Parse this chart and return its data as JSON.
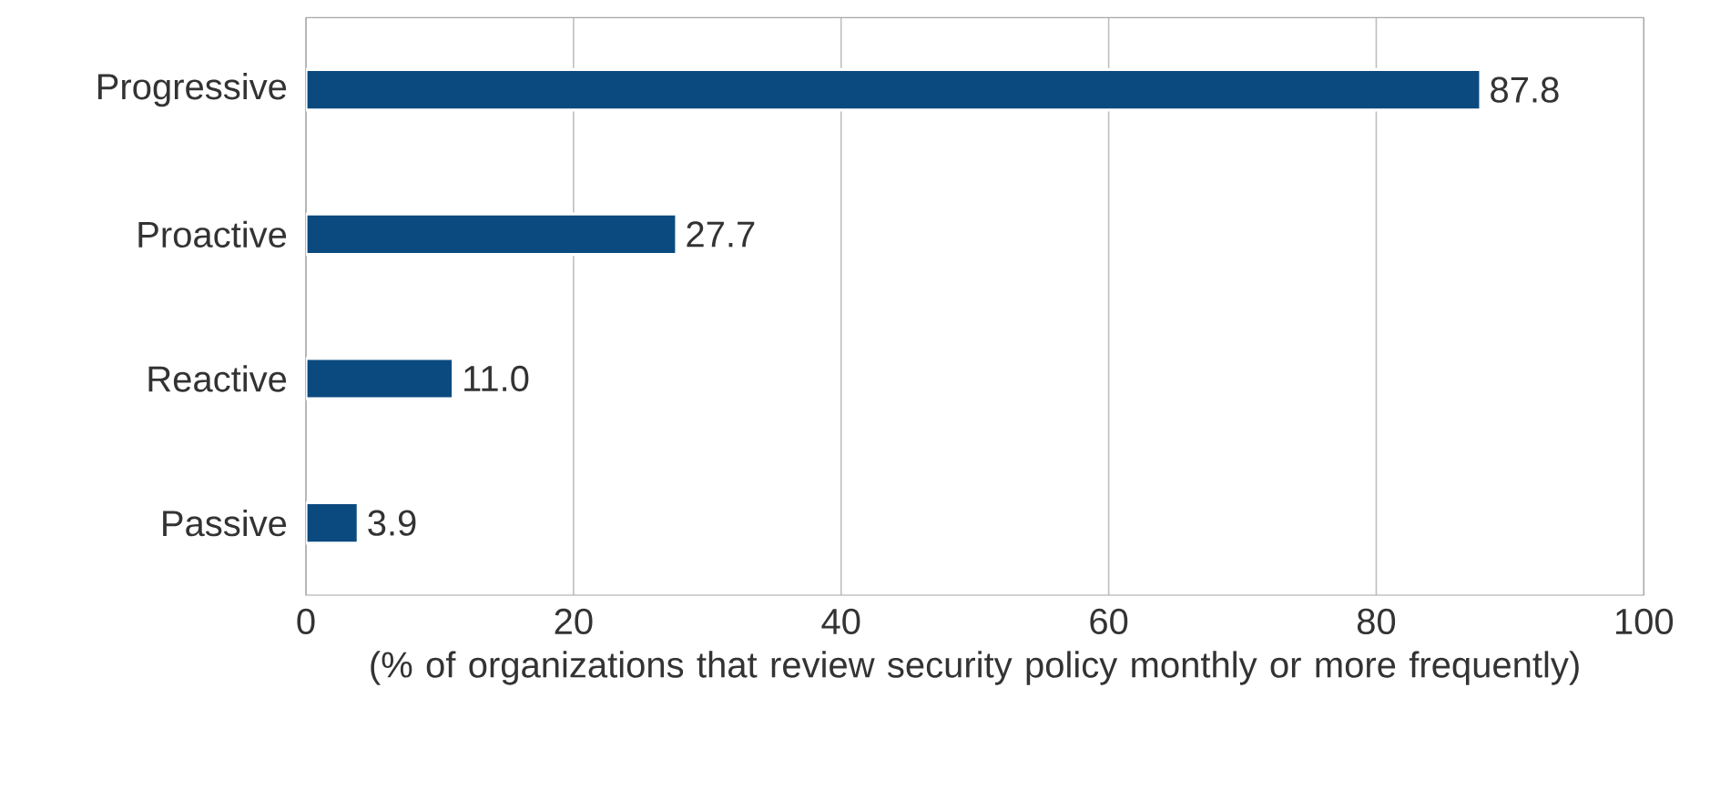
{
  "chart_data": {
    "type": "bar",
    "orientation": "horizontal",
    "categories": [
      "Progressive",
      "Proactive",
      "Reactive",
      "Passive"
    ],
    "values": [
      87.8,
      27.7,
      11.0,
      3.9
    ],
    "value_labels": [
      "87.8",
      "27.7",
      "11.0",
      "3.9"
    ],
    "color": "#0b4a7f",
    "xlim": [
      0,
      100
    ],
    "xticks": [
      0,
      20,
      40,
      60,
      80,
      100
    ],
    "xlabel": "(% of organizations that review security policy monthly or more frequently)",
    "grid": "x"
  }
}
